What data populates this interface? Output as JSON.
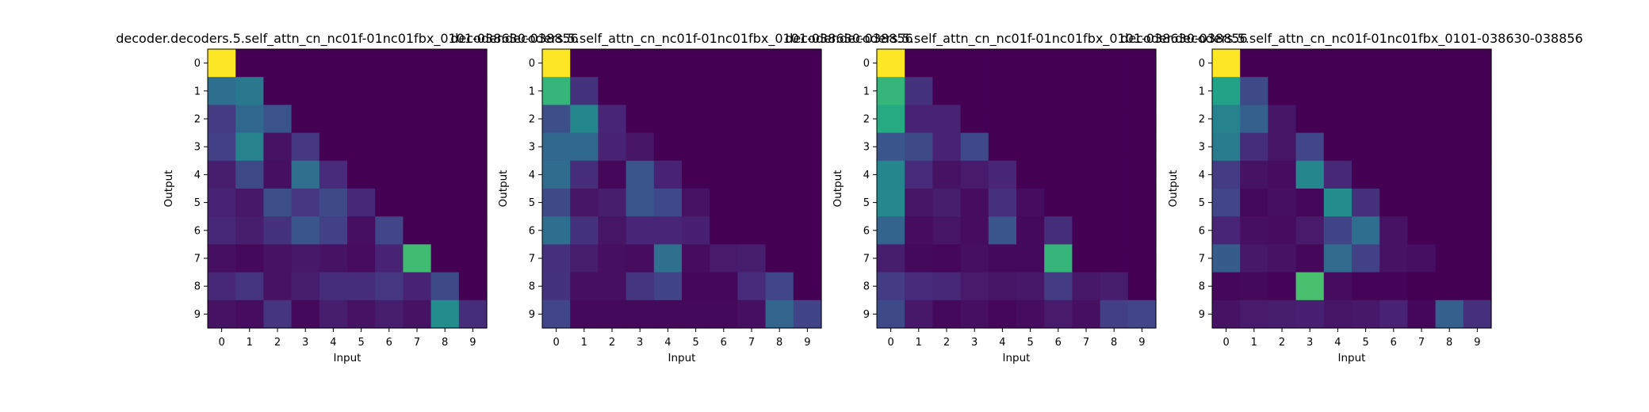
{
  "chart_data": [
    {
      "type": "heatmap",
      "title": "decoder.decoders.5.self_attn_cn_nc01f-01nc01fbx_0101-038630-038856",
      "xlabel": "Input",
      "ylabel": "Output",
      "x_ticks": [
        "0",
        "1",
        "2",
        "3",
        "4",
        "5",
        "6",
        "7",
        "8",
        "9"
      ],
      "y_ticks": [
        "0",
        "1",
        "2",
        "3",
        "4",
        "5",
        "6",
        "7",
        "8",
        "9"
      ],
      "colormap": "viridis",
      "value_range": [
        0,
        1
      ],
      "values": [
        [
          1.0,
          0.0,
          0.0,
          0.0,
          0.0,
          0.0,
          0.0,
          0.0,
          0.0,
          0.0
        ],
        [
          0.45,
          0.5,
          0.0,
          0.0,
          0.0,
          0.0,
          0.0,
          0.0,
          0.0,
          0.0
        ],
        [
          0.22,
          0.42,
          0.32,
          0.0,
          0.0,
          0.0,
          0.0,
          0.0,
          0.0,
          0.0
        ],
        [
          0.24,
          0.55,
          0.06,
          0.2,
          0.0,
          0.0,
          0.0,
          0.0,
          0.0,
          0.0
        ],
        [
          0.1,
          0.28,
          0.05,
          0.46,
          0.15,
          0.0,
          0.0,
          0.0,
          0.0,
          0.0
        ],
        [
          0.12,
          0.08,
          0.3,
          0.2,
          0.28,
          0.14,
          0.0,
          0.0,
          0.0,
          0.0
        ],
        [
          0.14,
          0.1,
          0.18,
          0.33,
          0.24,
          0.05,
          0.26,
          0.0,
          0.0,
          0.0
        ],
        [
          0.05,
          0.03,
          0.06,
          0.08,
          0.06,
          0.04,
          0.12,
          0.86,
          0.0,
          0.0
        ],
        [
          0.14,
          0.19,
          0.06,
          0.1,
          0.16,
          0.16,
          0.2,
          0.12,
          0.28,
          0.0
        ],
        [
          0.06,
          0.04,
          0.19,
          0.03,
          0.1,
          0.06,
          0.1,
          0.06,
          0.6,
          0.16
        ]
      ]
    },
    {
      "type": "heatmap",
      "title": "decoder.decoders.5.self_attn_cn_nc01f-01nc01fbx_0101-038630-038856",
      "xlabel": "Input",
      "ylabel": "Output",
      "x_ticks": [
        "0",
        "1",
        "2",
        "3",
        "4",
        "5",
        "6",
        "7",
        "8",
        "9"
      ],
      "y_ticks": [
        "0",
        "1",
        "2",
        "3",
        "4",
        "5",
        "6",
        "7",
        "8",
        "9"
      ],
      "colormap": "viridis",
      "value_range": [
        0,
        1
      ],
      "values": [
        [
          1.0,
          0.0,
          0.0,
          0.0,
          0.0,
          0.0,
          0.0,
          0.0,
          0.0,
          0.0
        ],
        [
          0.82,
          0.18,
          0.0,
          0.0,
          0.0,
          0.0,
          0.0,
          0.0,
          0.0,
          0.0
        ],
        [
          0.3,
          0.57,
          0.13,
          0.0,
          0.0,
          0.0,
          0.0,
          0.0,
          0.0,
          0.0
        ],
        [
          0.42,
          0.42,
          0.12,
          0.07,
          0.0,
          0.0,
          0.0,
          0.0,
          0.0,
          0.0
        ],
        [
          0.44,
          0.16,
          0.02,
          0.33,
          0.12,
          0.0,
          0.0,
          0.0,
          0.0,
          0.0
        ],
        [
          0.28,
          0.07,
          0.1,
          0.33,
          0.27,
          0.06,
          0.0,
          0.0,
          0.0,
          0.0
        ],
        [
          0.45,
          0.18,
          0.07,
          0.13,
          0.13,
          0.11,
          0.0,
          0.0,
          0.0,
          0.0
        ],
        [
          0.17,
          0.1,
          0.05,
          0.04,
          0.46,
          0.04,
          0.09,
          0.1,
          0.0,
          0.0
        ],
        [
          0.18,
          0.05,
          0.05,
          0.19,
          0.25,
          0.02,
          0.02,
          0.15,
          0.26,
          0.0
        ],
        [
          0.26,
          0.03,
          0.03,
          0.03,
          0.03,
          0.03,
          0.03,
          0.05,
          0.41,
          0.25
        ]
      ]
    },
    {
      "type": "heatmap",
      "title": "decoder.decoders.5.self_attn_cn_nc01f-01nc01fbx_0101-038630-038856",
      "xlabel": "Input",
      "ylabel": "Output",
      "x_ticks": [
        "0",
        "1",
        "2",
        "3",
        "4",
        "5",
        "6",
        "7",
        "8",
        "9"
      ],
      "y_ticks": [
        "0",
        "1",
        "2",
        "3",
        "4",
        "5",
        "6",
        "7",
        "8",
        "9"
      ],
      "colormap": "viridis",
      "value_range": [
        0,
        1
      ],
      "values": [
        [
          1.0,
          0.0,
          0.0,
          0.0,
          0.0,
          0.0,
          0.0,
          0.0,
          0.0,
          0.0
        ],
        [
          0.82,
          0.18,
          0.0,
          0.0,
          0.0,
          0.0,
          0.0,
          0.0,
          0.0,
          0.0
        ],
        [
          0.76,
          0.12,
          0.12,
          0.0,
          0.0,
          0.0,
          0.0,
          0.0,
          0.0,
          0.0
        ],
        [
          0.33,
          0.28,
          0.12,
          0.27,
          0.0,
          0.0,
          0.0,
          0.0,
          0.0,
          0.0
        ],
        [
          0.57,
          0.15,
          0.06,
          0.09,
          0.13,
          0.0,
          0.0,
          0.0,
          0.0,
          0.0
        ],
        [
          0.58,
          0.07,
          0.1,
          0.04,
          0.17,
          0.04,
          0.0,
          0.0,
          0.0,
          0.0
        ],
        [
          0.4,
          0.04,
          0.07,
          0.04,
          0.33,
          0.03,
          0.16,
          0.0,
          0.0,
          0.0
        ],
        [
          0.1,
          0.03,
          0.02,
          0.05,
          0.03,
          0.03,
          0.82,
          0.0,
          0.0,
          0.0
        ],
        [
          0.22,
          0.15,
          0.14,
          0.09,
          0.07,
          0.08,
          0.22,
          0.08,
          0.1,
          0.0
        ],
        [
          0.28,
          0.08,
          0.03,
          0.05,
          0.02,
          0.04,
          0.09,
          0.05,
          0.23,
          0.26
        ]
      ]
    },
    {
      "type": "heatmap",
      "title": "decoder.decoders.5.self_attn_cn_nc01f-01nc01fbx_0101-038630-038856",
      "xlabel": "Input",
      "ylabel": "Output",
      "x_ticks": [
        "0",
        "1",
        "2",
        "3",
        "4",
        "5",
        "6",
        "7",
        "8",
        "9"
      ],
      "y_ticks": [
        "0",
        "1",
        "2",
        "3",
        "4",
        "5",
        "6",
        "7",
        "8",
        "9"
      ],
      "colormap": "viridis",
      "value_range": [
        0,
        1
      ],
      "values": [
        [
          1.0,
          0.0,
          0.0,
          0.0,
          0.0,
          0.0,
          0.0,
          0.0,
          0.0,
          0.0
        ],
        [
          0.72,
          0.28,
          0.0,
          0.0,
          0.0,
          0.0,
          0.0,
          0.0,
          0.0,
          0.0
        ],
        [
          0.55,
          0.38,
          0.07,
          0.0,
          0.0,
          0.0,
          0.0,
          0.0,
          0.0,
          0.0
        ],
        [
          0.52,
          0.16,
          0.07,
          0.26,
          0.0,
          0.0,
          0.0,
          0.0,
          0.0,
          0.0
        ],
        [
          0.22,
          0.06,
          0.04,
          0.57,
          0.14,
          0.0,
          0.0,
          0.0,
          0.0,
          0.0
        ],
        [
          0.26,
          0.03,
          0.05,
          0.02,
          0.6,
          0.17,
          0.0,
          0.0,
          0.0,
          0.0
        ],
        [
          0.13,
          0.05,
          0.04,
          0.09,
          0.25,
          0.45,
          0.06,
          0.0,
          0.0,
          0.0
        ],
        [
          0.36,
          0.08,
          0.06,
          0.02,
          0.43,
          0.24,
          0.06,
          0.05,
          0.0,
          0.0
        ],
        [
          0.02,
          0.03,
          0.01,
          0.88,
          0.04,
          0.01,
          0.01,
          0.0,
          0.0,
          0.0
        ],
        [
          0.06,
          0.09,
          0.1,
          0.11,
          0.07,
          0.08,
          0.12,
          0.02,
          0.38,
          0.17
        ]
      ]
    }
  ]
}
